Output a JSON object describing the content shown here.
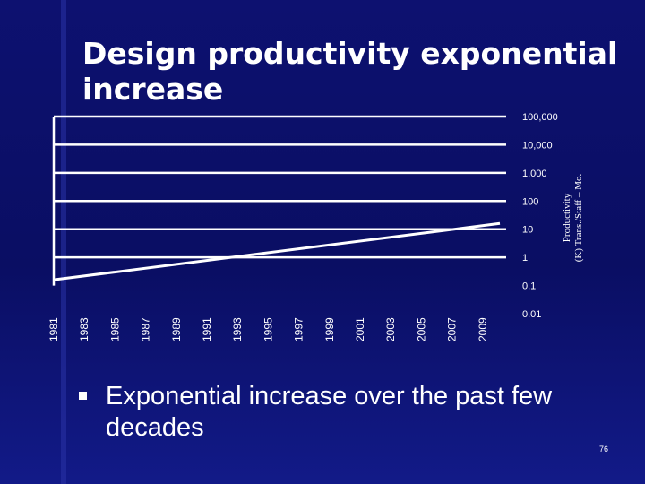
{
  "slide": {
    "title": "Design productivity exponential increase",
    "bullet": "Exponential increase over the past few decades",
    "page_number": "76"
  },
  "colors": {
    "background": "#0d1170",
    "foreground": "#ffffff"
  },
  "chart_data": {
    "type": "line",
    "scale": "log",
    "ylabel": "Productivity (K) Trans./Staff – Mo.",
    "y_ticks": [
      {
        "label": "100,000",
        "value": 100000
      },
      {
        "label": "10,000",
        "value": 10000
      },
      {
        "label": "1,000",
        "value": 1000
      },
      {
        "label": "100",
        "value": 100
      },
      {
        "label": "10",
        "value": 10
      },
      {
        "label": "1",
        "value": 1
      },
      {
        "label": "0.1",
        "value": 0.1
      },
      {
        "label": "0.01",
        "value": 0.01
      }
    ],
    "x_ticks": [
      "1981",
      "1983",
      "1985",
      "1987",
      "1989",
      "1991",
      "1993",
      "1995",
      "1997",
      "1999",
      "2001",
      "2003",
      "2005",
      "2007",
      "2009"
    ],
    "series": [
      {
        "name": "Productivity",
        "points": [
          {
            "x": 1981,
            "y": 0.16
          },
          {
            "x": 2009,
            "y": 16
          }
        ]
      }
    ]
  }
}
